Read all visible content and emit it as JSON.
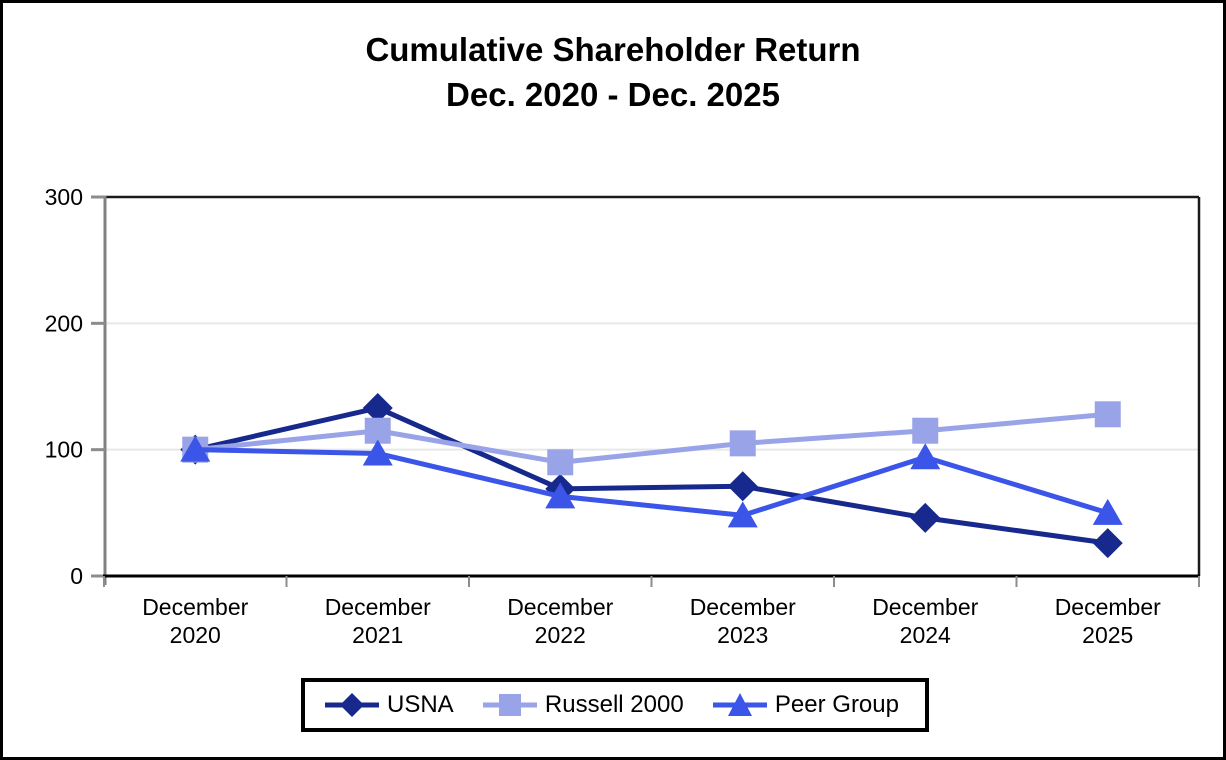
{
  "title": {
    "line1": "Cumulative Shareholder Return",
    "line2": "Dec. 2020 - Dec. 2025"
  },
  "colors": {
    "usna": "#17298C",
    "russell_2000": "#99A3E8",
    "peer_group": "#3A55E7",
    "gridline": "#E8E8E8",
    "axis_gray": "#808080",
    "tick_gray": "#8C8C8C",
    "axis_black": "#000000",
    "plot_border": "#1A1A1A"
  },
  "chart_data": {
    "type": "line",
    "title": "Cumulative Shareholder Return",
    "subtitle": "Dec. 2020 - Dec. 2025",
    "categories": [
      "December 2020",
      "December 2021",
      "December 2022",
      "December 2023",
      "December 2024",
      "December 2025"
    ],
    "series": [
      {
        "name": "USNA",
        "marker": "diamond",
        "color": "#17298C",
        "values": [
          100,
          133,
          69,
          71,
          46,
          26
        ]
      },
      {
        "name": "Russell 2000",
        "marker": "square",
        "color": "#99A3E8",
        "values": [
          100,
          115,
          90,
          105,
          115,
          128
        ]
      },
      {
        "name": "Peer Group",
        "marker": "triangle",
        "color": "#3A55E7",
        "values": [
          100,
          97,
          63,
          48,
          94,
          50
        ]
      }
    ],
    "xlabel": "",
    "ylabel": "",
    "ylim": [
      0,
      300
    ],
    "yticks": [
      0,
      100,
      200,
      300
    ],
    "grid": "horizontal",
    "legend_position": "bottom"
  }
}
